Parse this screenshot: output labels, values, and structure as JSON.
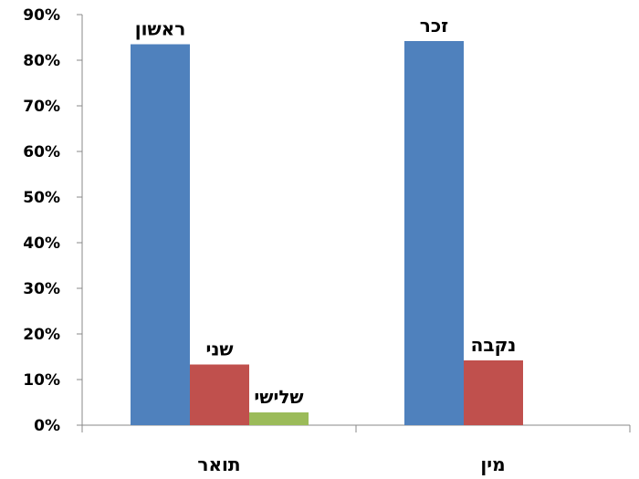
{
  "chart_data": {
    "type": "bar",
    "title": "",
    "xlabel": "",
    "ylabel": "",
    "ylim": [
      0,
      0.9
    ],
    "yticks": [
      0,
      0.1,
      0.2,
      0.3,
      0.4,
      0.5,
      0.6,
      0.7,
      0.8,
      0.9
    ],
    "ytick_labels": [
      "0%",
      "10%",
      "20%",
      "30%",
      "40%",
      "50%",
      "60%",
      "70%",
      "80%",
      "90%"
    ],
    "grid": false,
    "legend": "none",
    "groups": [
      {
        "category": "תואר",
        "bars": [
          {
            "label": "ראשון",
            "value": 0.835,
            "color": "#4f81bd"
          },
          {
            "label": "שני",
            "value": 0.133,
            "color": "#c0504d"
          },
          {
            "label": "שלישי",
            "value": 0.028,
            "color": "#9bbb59"
          }
        ]
      },
      {
        "category": "מין",
        "bars": [
          {
            "label": "זכר",
            "value": 0.842,
            "color": "#4f81bd"
          },
          {
            "label": "נקבה",
            "value": 0.142,
            "color": "#c0504d"
          }
        ]
      }
    ]
  }
}
